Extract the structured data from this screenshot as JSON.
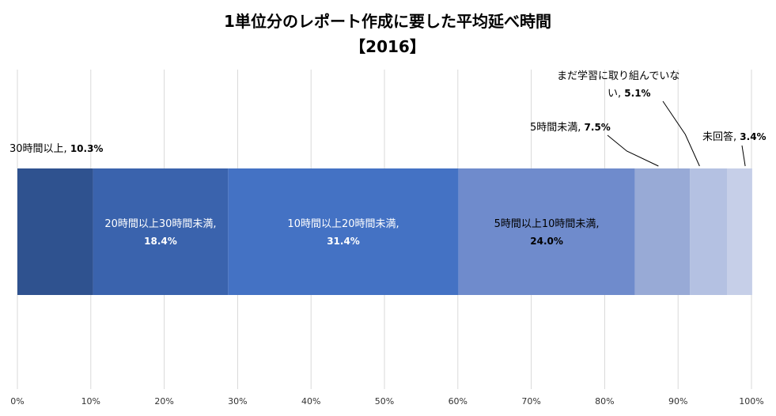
{
  "chart_data": {
    "type": "bar",
    "orientation": "horizontal",
    "stacked": "100%",
    "title": "1単位分のレポート作成に要した平均延べ時間",
    "subtitle": "【2016】",
    "xlabel": "",
    "ylabel": "",
    "xlim": [
      0,
      100
    ],
    "x_ticks": [
      "0%",
      "10%",
      "20%",
      "30%",
      "40%",
      "50%",
      "60%",
      "70%",
      "80%",
      "90%",
      "100%"
    ],
    "grid": true,
    "legend": "none",
    "series": [
      {
        "name": "30時間以上",
        "value": 10.3,
        "value_label": "10.3%",
        "color": "#2f528f"
      },
      {
        "name": "20時間以上30時間未満,",
        "value": 18.4,
        "value_label": "18.4%",
        "color": "#3a63ad"
      },
      {
        "name": "10時間以上20時間未満,",
        "value": 31.4,
        "value_label": "31.4%",
        "color": "#4472c4"
      },
      {
        "name": "5時間以上10時間未満,",
        "value": 24.0,
        "value_label": "24.0%",
        "color": "#6f8bcc"
      },
      {
        "name": "5時間未満",
        "value": 7.5,
        "value_label": "7.5%",
        "color": "#98aad6"
      },
      {
        "name_line1": "まだ学習に取り組んでいな",
        "name_line2": "い",
        "value": 5.1,
        "value_label": "5.1%",
        "color": "#b4c1e2"
      },
      {
        "name": "未回答",
        "value": 3.4,
        "value_label": "3.4%",
        "color": "#c6cfe8"
      }
    ]
  }
}
